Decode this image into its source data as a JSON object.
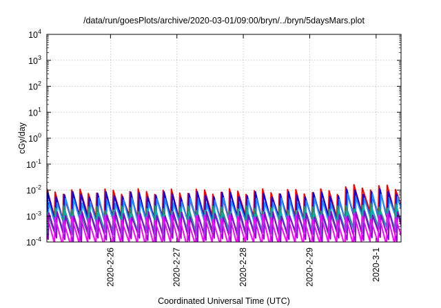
{
  "chart_data": {
    "type": "line",
    "title": "/data/run/goesPlots/archive/2020-03-01/09:00/bryn/../bryn/5daysMars.plot",
    "xlabel": "Coordinated Universal Time (UTC)",
    "ylabel": "cGy/day",
    "yscale": "log",
    "ylim": [
      0.0001,
      10000
    ],
    "xlim": [
      "2020-02-25T01:00",
      "2020-03-01T09:00"
    ],
    "grid": true,
    "x_ticks": [
      {
        "value": "2020-02-26T00:00",
        "label": "2020-2-26"
      },
      {
        "value": "2020-02-27T00:00",
        "label": "2020-2-27"
      },
      {
        "value": "2020-02-28T00:00",
        "label": "2020-2-28"
      },
      {
        "value": "2020-02-29T00:00",
        "label": "2020-2-29"
      },
      {
        "value": "2020-03-01T00:00",
        "label": "2020-3-1"
      }
    ],
    "y_ticks": [
      {
        "value": 0.0001,
        "base": "10",
        "exp": "-4"
      },
      {
        "value": 0.001,
        "base": "10",
        "exp": "-3"
      },
      {
        "value": 0.01,
        "base": "10",
        "exp": "-2"
      },
      {
        "value": 0.1,
        "base": "10",
        "exp": "-1"
      },
      {
        "value": 1,
        "base": "10",
        "exp": "0"
      },
      {
        "value": 10,
        "base": "10",
        "exp": "1"
      },
      {
        "value": 100,
        "base": "10",
        "exp": "2"
      },
      {
        "value": 1000,
        "base": "10",
        "exp": "3"
      },
      {
        "value": 10000,
        "base": "10",
        "exp": "4"
      }
    ],
    "sawtooth_period_hours": 3,
    "series": [
      {
        "color": "#ff0000",
        "peak": 0.009,
        "trough": 0.0009,
        "late_peak": 0.013
      },
      {
        "color": "#0000ee",
        "peak": 0.007,
        "trough": 0.0006,
        "late_peak": 0.009
      },
      {
        "color": "#1e90ff",
        "peak": 0.004,
        "trough": 0.0004,
        "late_peak": 0.006
      },
      {
        "color": "#2e8b57",
        "peak": 0.002,
        "trough": 0.00025,
        "late_peak": 0.0025
      },
      {
        "color": "#00b3b3",
        "peak": 0.0015,
        "trough": 0.0002,
        "late_peak": 0.002
      },
      {
        "color": "#9400d3",
        "peak": 0.0012,
        "trough": 0.00012,
        "late_peak": 0.0013
      },
      {
        "color": "#ff00ff",
        "peak": 0.0009,
        "trough": 8e-05,
        "late_peak": 0.001
      }
    ]
  }
}
